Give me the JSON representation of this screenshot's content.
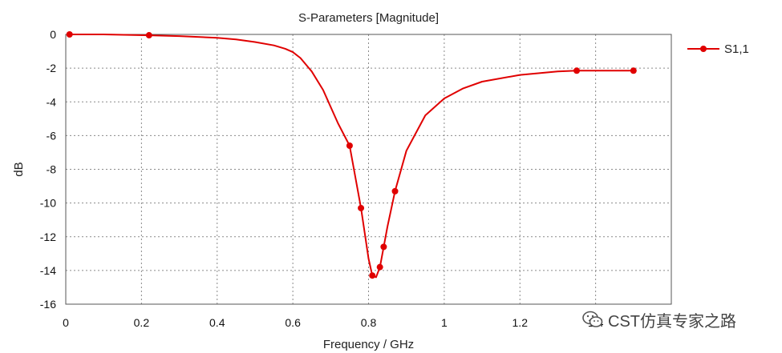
{
  "chart_data": {
    "type": "line",
    "title": "S-Parameters [Magnitude]",
    "xlabel": "Frequency / GHz",
    "ylabel": "dB",
    "xlim": [
      0,
      1.6
    ],
    "ylim": [
      -16,
      0
    ],
    "xticks": [
      "0",
      "0.2",
      "0.4",
      "0.6",
      "0.8",
      "1",
      "1.2",
      "1.4"
    ],
    "xtick_values": [
      0,
      0.2,
      0.4,
      0.6,
      0.8,
      1.0,
      1.2,
      1.4
    ],
    "yticks": [
      "0",
      "-2",
      "-4",
      "-6",
      "-8",
      "-10",
      "-12",
      "-14",
      "-16"
    ],
    "ytick_values": [
      0,
      -2,
      -4,
      -6,
      -8,
      -10,
      -12,
      -14,
      -16
    ],
    "grid": true,
    "legend_position": "right",
    "series": [
      {
        "name": "S1,1",
        "color": "#e00000",
        "x": [
          0.01,
          0.1,
          0.22,
          0.3,
          0.4,
          0.45,
          0.5,
          0.55,
          0.58,
          0.6,
          0.62,
          0.65,
          0.68,
          0.7,
          0.72,
          0.75,
          0.78,
          0.8,
          0.81,
          0.82,
          0.83,
          0.84,
          0.85,
          0.87,
          0.9,
          0.95,
          1.0,
          1.05,
          1.1,
          1.2,
          1.3,
          1.35,
          1.5
        ],
        "y": [
          0,
          0,
          -0.05,
          -0.1,
          -0.2,
          -0.3,
          -0.45,
          -0.65,
          -0.85,
          -1.05,
          -1.4,
          -2.2,
          -3.3,
          -4.3,
          -5.3,
          -6.6,
          -10.3,
          -13.3,
          -14.3,
          -14.4,
          -13.8,
          -12.6,
          -11.4,
          -9.3,
          -6.9,
          -4.8,
          -3.8,
          -3.2,
          -2.8,
          -2.4,
          -2.2,
          -2.15,
          -2.15
        ]
      }
    ],
    "markers": {
      "x": [
        0.01,
        0.22,
        0.75,
        0.78,
        0.81,
        0.83,
        0.84,
        0.87,
        1.35,
        1.5
      ],
      "y": [
        0,
        -0.05,
        -6.6,
        -10.3,
        -14.3,
        -13.8,
        -12.6,
        -9.3,
        -2.15,
        -2.15
      ]
    }
  },
  "watermark": {
    "text": "CST仿真专家之路",
    "icon": "wechat-icon"
  }
}
